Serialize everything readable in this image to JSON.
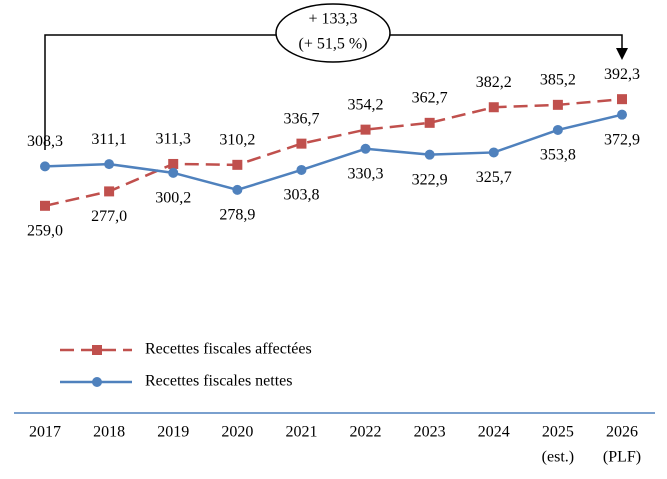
{
  "chart_data": {
    "type": "line",
    "categories": [
      "2017",
      "2018",
      "2019",
      "2020",
      "2021",
      "2022",
      "2023",
      "2024",
      "2025",
      "2026"
    ],
    "category_notes": [
      null,
      null,
      null,
      null,
      null,
      null,
      null,
      null,
      "(est.)",
      "(PLF)"
    ],
    "annotations": [
      "+ 133,3",
      "(+ 51,5 %)"
    ],
    "ylim": [
      240,
      420
    ],
    "series": [
      {
        "name": "Recettes fiscales affectées",
        "color": "#c0504d",
        "dashed": true,
        "marker": "square",
        "values": [
          259.0,
          277.0,
          311.3,
          310.2,
          336.7,
          354.2,
          362.7,
          382.2,
          385.2,
          392.3
        ],
        "value_labels": [
          "259,0",
          "277,0",
          "311,3",
          "310,2",
          "336,7",
          "354,2",
          "362,7",
          "382,2",
          "385,2",
          "392,3"
        ]
      },
      {
        "name": "Recettes fiscales nettes",
        "color": "#4f81bd",
        "dashed": false,
        "marker": "circle",
        "values": [
          308.3,
          311.1,
          300.2,
          278.9,
          303.8,
          330.3,
          322.9,
          325.7,
          353.8,
          372.9
        ],
        "value_labels": [
          "308,3",
          "311,1",
          "300,2",
          "278,9",
          "303,8",
          "330,3",
          "322,9",
          "325,7",
          "353,8",
          "372,9"
        ]
      }
    ]
  }
}
